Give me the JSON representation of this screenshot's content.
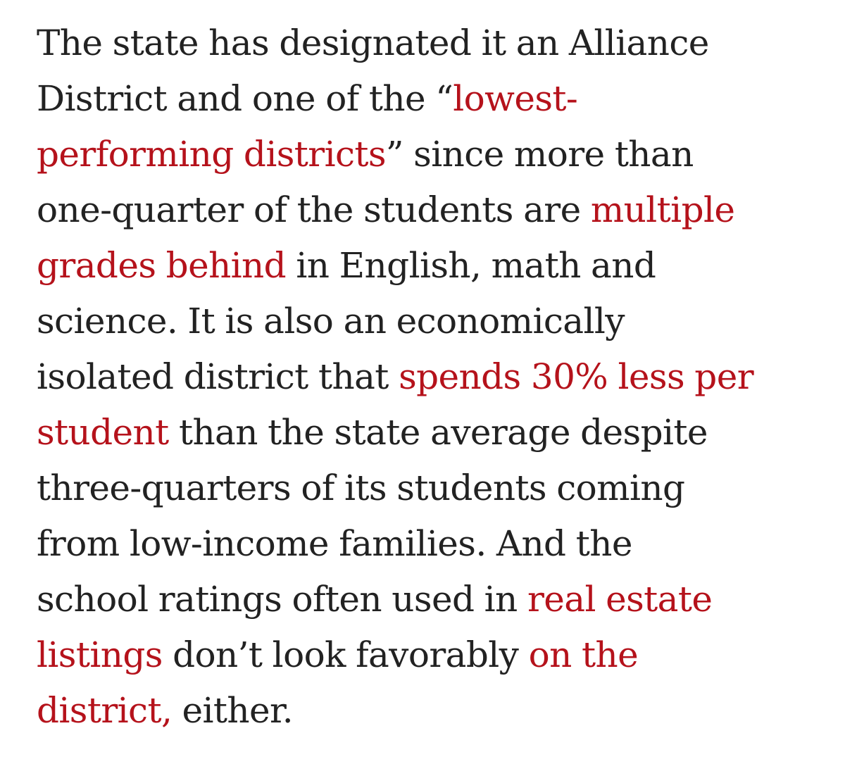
{
  "article": {
    "paragraph": {
      "lines": [
        [
          {
            "text": "The state has designated it an Alliance",
            "link": false
          }
        ],
        [
          {
            "text": "District and one of the “",
            "link": false
          },
          {
            "text": "lowest-",
            "link": true,
            "link_ref": "lowest_performing"
          }
        ],
        [
          {
            "text": "performing districts",
            "link": true,
            "link_ref": "lowest_performing"
          },
          {
            "text": "” since more than",
            "link": false
          }
        ],
        [
          {
            "text": "one-quarter of the students are ",
            "link": false
          },
          {
            "text": "multiple",
            "link": true,
            "link_ref": "multiple_grades"
          }
        ],
        [
          {
            "text": "grades behind",
            "link": true,
            "link_ref": "multiple_grades"
          },
          {
            "text": " in English, math and",
            "link": false
          }
        ],
        [
          {
            "text": "science. It is also an economically",
            "link": false
          }
        ],
        [
          {
            "text": "isolated district that ",
            "link": false
          },
          {
            "text": "spends 30% less per",
            "link": true,
            "link_ref": "spends_less"
          }
        ],
        [
          {
            "text": "student",
            "link": true,
            "link_ref": "spends_less"
          },
          {
            "text": " than the state average despite",
            "link": false
          }
        ],
        [
          {
            "text": "three-quarters of its students coming",
            "link": false
          }
        ],
        [
          {
            "text": "from low-income families. And the",
            "link": false
          }
        ],
        [
          {
            "text": "school ratings often used in ",
            "link": false
          },
          {
            "text": "real estate",
            "link": true,
            "link_ref": "real_estate"
          }
        ],
        [
          {
            "text": "listings",
            "link": true,
            "link_ref": "real_estate"
          },
          {
            "text": " don’t look favorably ",
            "link": false
          },
          {
            "text": "on the",
            "link": true,
            "link_ref": "on_district"
          }
        ],
        [
          {
            "text": "district,",
            "link": true,
            "link_ref": "on_district"
          },
          {
            "text": " either.",
            "link": false
          }
        ]
      ]
    }
  },
  "colors": {
    "text": "#222222",
    "link": "#b5121b",
    "background": "#ffffff"
  }
}
